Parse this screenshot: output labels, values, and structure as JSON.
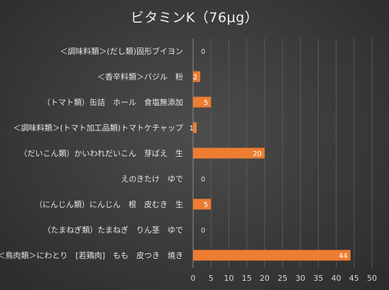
{
  "chart_data": {
    "type": "bar",
    "orientation": "horizontal",
    "title": "ビタミンK（76μg）",
    "categories": [
      "＜調味料類＞(だし類)固形ブイヨン",
      "＜香辛料類＞バジル　粉",
      "（トマト類）缶詰　ホール　食塩無添加",
      "＜調味料類＞(トマト加工品類)トマトケチャップ",
      "（だいこん類）かいわれだいこん　芽ばえ　生",
      "えのきたけ　ゆで",
      "（にんじん類）にんじん　根　皮むき　生",
      "（たまねぎ類）たまねぎ　りん茎　ゆで",
      "＜鳥肉類＞にわとり　[若鶏肉]　もも　皮つき　焼き"
    ],
    "values": [
      0,
      2,
      5,
      1,
      20,
      0,
      5,
      0,
      44
    ],
    "data_labels": [
      "0",
      "2",
      "5",
      "1",
      "20",
      "0",
      "5",
      "0",
      "44"
    ],
    "xlim": [
      0,
      50
    ],
    "x_ticks": [
      "0",
      "5",
      "10",
      "15",
      "20",
      "25",
      "30",
      "35",
      "40",
      "45",
      "50"
    ],
    "grid": true,
    "legend": "none",
    "bar_color": "#ed7d31",
    "background_color": "#404040"
  }
}
